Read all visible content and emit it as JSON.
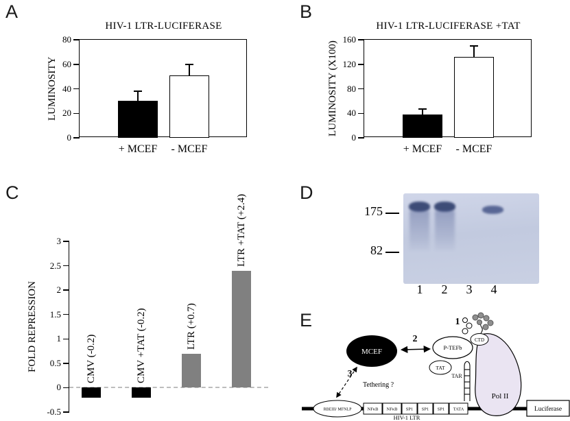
{
  "panels": {
    "a": "A",
    "b": "B",
    "c": "C",
    "d": "D",
    "e": "E"
  },
  "chart_data": [
    {
      "id": "A",
      "type": "bar",
      "title": "HIV-1 LTR-LUCIFERASE",
      "ylabel": "LUMINOSITY",
      "ylim": [
        0,
        80
      ],
      "yticks": [
        0,
        20,
        40,
        60,
        80
      ],
      "categories": [
        "+ MCEF",
        "- MCEF"
      ],
      "values": [
        30,
        51
      ],
      "errors": [
        8,
        9
      ],
      "bar_colors": [
        "#000000",
        "#ffffff"
      ],
      "legend": "none",
      "grid": false
    },
    {
      "id": "B",
      "type": "bar",
      "title": "HIV-1 LTR-LUCIFERASE +TAT",
      "ylabel": "LUMINOSITY (X100)",
      "ylim": [
        0,
        160
      ],
      "yticks": [
        0,
        40,
        80,
        120,
        160
      ],
      "categories": [
        "+ MCEF",
        "- MCEF"
      ],
      "values": [
        38,
        132
      ],
      "errors": [
        9,
        18
      ],
      "bar_colors": [
        "#000000",
        "#ffffff"
      ],
      "legend": "none",
      "grid": false
    },
    {
      "id": "C",
      "type": "bar",
      "title": "",
      "ylabel": "FOLD REPRESSION",
      "ylim": [
        -0.5,
        3
      ],
      "yticks": [
        -0.5,
        0,
        0.5,
        1,
        1.5,
        2,
        2.5,
        3
      ],
      "categories": [
        "CMV (-0.2)",
        "CMV +TAT (-0.2)",
        "LTR (+0.7)",
        "LTR +TAT (+2.4)"
      ],
      "values": [
        -0.2,
        -0.2,
        0.7,
        2.4
      ],
      "bar_colors": [
        "#000000",
        "#000000",
        "#808080",
        "#808080"
      ],
      "zero_line": "dashed",
      "label_style": "rotated-above-bar",
      "legend": "none",
      "grid": false
    }
  ],
  "gel": {
    "markers": [
      {
        "label": "175"
      },
      {
        "label": "82"
      }
    ],
    "lane_labels": [
      "1",
      "2",
      "3",
      "4"
    ],
    "bands": [
      {
        "lane": 1,
        "intensity": "strong"
      },
      {
        "lane": 2,
        "intensity": "strong"
      },
      {
        "lane": 4,
        "intensity": "medium"
      }
    ]
  },
  "diagram": {
    "mcef_label": "MCEF",
    "ptefb_label": "P-TEFb",
    "tat_label": "TAT",
    "tar_label": "TAR",
    "ctd_label": "CTD",
    "polii_label": "Pol II",
    "luciferase_label": "Luciferase",
    "tethering_label": "Tethering ?",
    "step1": "1",
    "step2": "2",
    "step3": "3",
    "ltr_elements": [
      "RBEIII/ MFNLP",
      "NFκB",
      "NFκB",
      "SP1",
      "SP1",
      "SP1",
      "TATA"
    ],
    "ltr_label": "HIV-1 LTR"
  }
}
